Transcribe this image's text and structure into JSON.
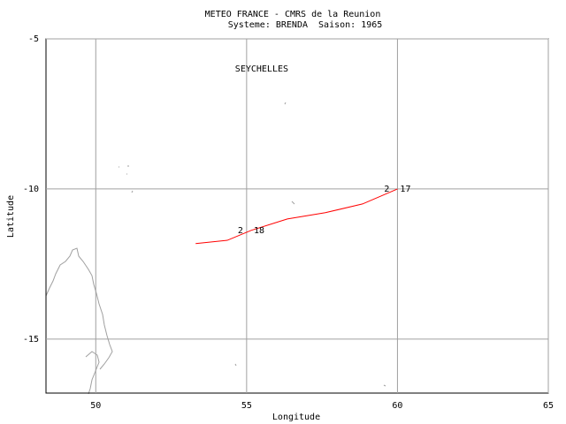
{
  "chart_data": {
    "type": "line",
    "title": "METEO FRANCE - CMRS de la Reunion",
    "subtitle": "Systeme: BRENDA  Saison: 1965",
    "x_label": "Longitude",
    "y_label": "Latitude",
    "xlim": [
      48.35,
      65
    ],
    "ylim": [
      -16.8,
      -5
    ],
    "xticks": [
      50,
      55,
      60,
      65
    ],
    "yticks": [
      -5,
      -10,
      -15
    ],
    "grid": true,
    "series": [
      {
        "color": "#ff0000",
        "x": [
          53.31,
          54.36,
          55.15,
          56.35,
          57.61,
          58.84,
          60.0
        ],
        "values": [
          -11.82,
          -11.71,
          -11.38,
          -11.0,
          -10.79,
          -10.5,
          -10.0
        ]
      }
    ],
    "annotations": [
      {
        "text": "2  17",
        "x": 60.0,
        "y": -10.0
      },
      {
        "text": "2  18",
        "x": 55.15,
        "y": -11.38
      },
      {
        "text": "SEYCHELLES",
        "x": 55.5,
        "y": -6.0
      }
    ]
  }
}
